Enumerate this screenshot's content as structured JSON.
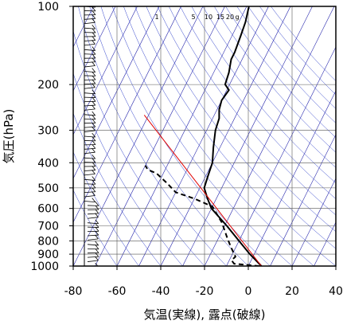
{
  "chart_data": {
    "type": "line",
    "title": "",
    "xlabel": "気温(実線), 露点(破線)",
    "ylabel": "気圧(hPa)",
    "xlim": [
      -80,
      40
    ],
    "ylim": [
      1000,
      100
    ],
    "yscale": "log",
    "xticks": [
      "-80",
      "-60",
      "-40",
      "-20",
      "0",
      "20",
      "40"
    ],
    "yticks": [
      "100",
      "200",
      "300",
      "400",
      "500",
      "600",
      "700",
      "800",
      "900",
      "1000"
    ],
    "mixing_ratio_labels": [
      "1",
      "5",
      "10",
      "15",
      "20",
      "g"
    ],
    "grid": true,
    "series": [
      {
        "name": "",
        "style": "solid",
        "color": "#000000",
        "points": [
          {
            "t": 6.0,
            "p": 1000
          },
          {
            "t": -2.0,
            "p": 900
          },
          {
            "t": -10.0,
            "p": 800
          },
          {
            "t": -19.0,
            "p": 700
          },
          {
            "t": -30.0,
            "p": 600
          },
          {
            "t": -34.0,
            "p": 550
          },
          {
            "t": -38.0,
            "p": 500
          },
          {
            "t": -39.0,
            "p": 450
          },
          {
            "t": -40.0,
            "p": 400
          },
          {
            "t": -43.0,
            "p": 350
          },
          {
            "t": -46.0,
            "p": 300
          },
          {
            "t": -47.0,
            "p": 270
          },
          {
            "t": -49.0,
            "p": 250
          },
          {
            "t": -50.0,
            "p": 230
          },
          {
            "t": -49.0,
            "p": 210
          },
          {
            "t": -52.0,
            "p": 200
          },
          {
            "t": -53.0,
            "p": 180
          },
          {
            "t": -55.0,
            "p": 160
          },
          {
            "t": -55.0,
            "p": 150
          },
          {
            "t": -56.0,
            "p": 130
          },
          {
            "t": -57.0,
            "p": 115
          },
          {
            "t": -59.0,
            "p": 100
          }
        ]
      },
      {
        "name": "",
        "style": "dashed",
        "color": "#000000",
        "points": [
          {
            "t": 5.0,
            "p": 1000
          },
          {
            "t": -7.0,
            "p": 980
          },
          {
            "t": -9.0,
            "p": 950
          },
          {
            "t": -8.0,
            "p": 920
          },
          {
            "t": -12.0,
            "p": 850
          },
          {
            "t": -16.0,
            "p": 780
          },
          {
            "t": -22.0,
            "p": 680
          },
          {
            "t": -30.0,
            "p": 590
          },
          {
            "t": -40.0,
            "p": 550
          },
          {
            "t": -50.0,
            "p": 520
          },
          {
            "t": -56.0,
            "p": 480
          },
          {
            "t": -63.0,
            "p": 440
          },
          {
            "t": -68.0,
            "p": 425
          },
          {
            "t": -70.0,
            "p": 410
          }
        ]
      },
      {
        "name": "",
        "style": "solid",
        "color": "#e00000",
        "points": [
          {
            "t": 6.0,
            "p": 1000
          },
          {
            "t": -82.0,
            "p": 262
          }
        ]
      }
    ],
    "background_lines": {
      "isotherm_color": "#2222aa",
      "reference_color": "#3344cc"
    }
  }
}
